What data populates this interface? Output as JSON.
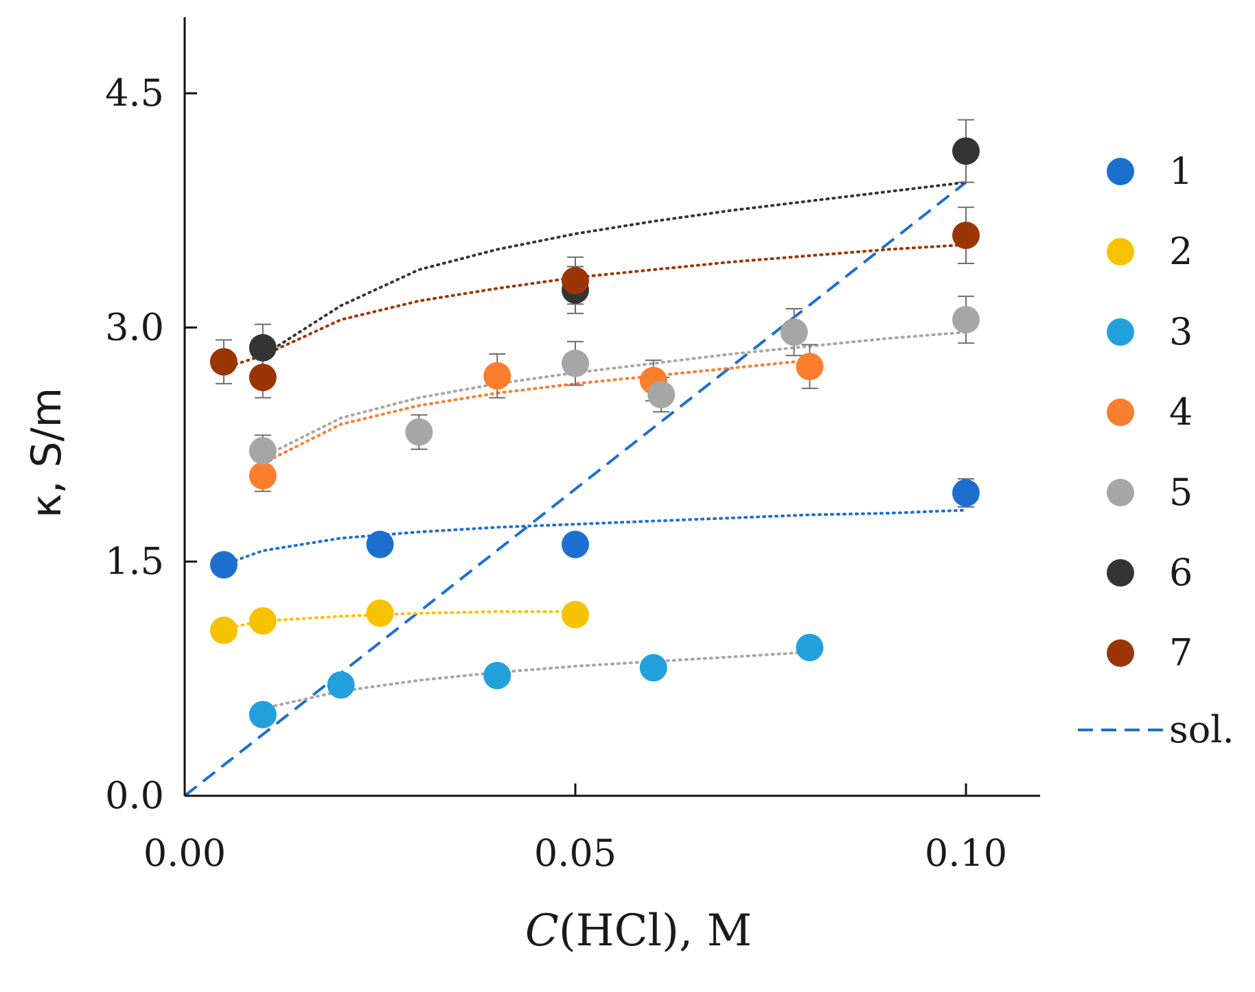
{
  "chart_data": {
    "type": "scatter",
    "xlabel": {
      "italic": "C",
      "rest": "(HCl), M"
    },
    "ylabel": "κ, S/m",
    "xlim": [
      0,
      0.11
    ],
    "ylim": [
      0,
      5.0
    ],
    "xticks": [
      0.0,
      0.05,
      0.1
    ],
    "xtick_labels": [
      "0.00",
      "0.05",
      "0.10"
    ],
    "yticks": [
      0.0,
      1.5,
      3.0,
      4.5
    ],
    "ytick_labels": [
      "0.0",
      "1.5",
      "3.0",
      "4.5"
    ],
    "grid": false,
    "legend_position": "right",
    "series": [
      {
        "name": "1",
        "color": "#1c6fcf",
        "fit_color": "#1c6fcf",
        "points": [
          [
            0.005,
            1.48
          ],
          [
            0.025,
            1.61
          ],
          [
            0.05,
            1.61
          ],
          [
            0.1,
            1.94
          ]
        ],
        "errors": [
          0.06,
          0,
          0,
          0.09
        ],
        "fit": [
          [
            0.005,
            1.48
          ],
          [
            0.01,
            1.57
          ],
          [
            0.02,
            1.65
          ],
          [
            0.03,
            1.69
          ],
          [
            0.04,
            1.72
          ],
          [
            0.05,
            1.74
          ],
          [
            0.06,
            1.76
          ],
          [
            0.07,
            1.78
          ],
          [
            0.08,
            1.8
          ],
          [
            0.09,
            1.81
          ],
          [
            0.1,
            1.83
          ]
        ]
      },
      {
        "name": "2",
        "color": "#f7c200",
        "fit_color": "#f7c200",
        "points": [
          [
            0.005,
            1.06
          ],
          [
            0.01,
            1.12
          ],
          [
            0.025,
            1.17
          ],
          [
            0.05,
            1.16
          ]
        ],
        "errors": [
          0,
          0,
          0,
          0
        ],
        "fit": [
          [
            0.005,
            1.07
          ],
          [
            0.01,
            1.12
          ],
          [
            0.02,
            1.15
          ],
          [
            0.03,
            1.17
          ],
          [
            0.04,
            1.18
          ],
          [
            0.05,
            1.18
          ]
        ]
      },
      {
        "name": "3",
        "color": "#22a0db",
        "fit_color": "#a6a6a6",
        "points": [
          [
            0.01,
            0.52
          ],
          [
            0.02,
            0.71
          ],
          [
            0.04,
            0.77
          ],
          [
            0.06,
            0.82
          ],
          [
            0.08,
            0.95
          ]
        ],
        "errors": [
          0,
          0,
          0,
          0,
          0
        ],
        "fit": [
          [
            0.01,
            0.56
          ],
          [
            0.02,
            0.67
          ],
          [
            0.03,
            0.74
          ],
          [
            0.04,
            0.79
          ],
          [
            0.05,
            0.83
          ],
          [
            0.06,
            0.86
          ],
          [
            0.07,
            0.89
          ],
          [
            0.08,
            0.92
          ]
        ]
      },
      {
        "name": "4",
        "color": "#fb7d2e",
        "fit_color": "#fb7d2e",
        "points": [
          [
            0.01,
            2.05
          ],
          [
            0.04,
            2.69
          ],
          [
            0.06,
            2.66
          ],
          [
            0.08,
            2.75
          ]
        ],
        "errors": [
          0.1,
          0.14,
          0.13,
          0.14
        ],
        "fit": [
          [
            0.01,
            2.13
          ],
          [
            0.02,
            2.38
          ],
          [
            0.03,
            2.5
          ],
          [
            0.04,
            2.58
          ],
          [
            0.05,
            2.64
          ],
          [
            0.06,
            2.69
          ],
          [
            0.07,
            2.74
          ],
          [
            0.08,
            2.79
          ]
        ]
      },
      {
        "name": "5",
        "color": "#a6a6a6",
        "fit_color": "#a6a6a6",
        "points": [
          [
            0.01,
            2.21
          ],
          [
            0.03,
            2.33
          ],
          [
            0.05,
            2.77
          ],
          [
            0.061,
            2.57
          ],
          [
            0.078,
            2.97
          ],
          [
            0.1,
            3.05
          ]
        ],
        "errors": [
          0.1,
          0.11,
          0.14,
          0.11,
          0.15,
          0.15
        ],
        "fit": [
          [
            0.01,
            2.17
          ],
          [
            0.02,
            2.42
          ],
          [
            0.03,
            2.55
          ],
          [
            0.04,
            2.64
          ],
          [
            0.05,
            2.71
          ],
          [
            0.06,
            2.77
          ],
          [
            0.07,
            2.83
          ],
          [
            0.08,
            2.88
          ],
          [
            0.09,
            2.93
          ],
          [
            0.1,
            2.97
          ]
        ]
      },
      {
        "name": "6",
        "color": "#343434",
        "fit_color": "#343434",
        "points": [
          [
            0.01,
            2.87
          ],
          [
            0.05,
            3.24
          ],
          [
            0.1,
            4.13
          ]
        ],
        "errors": [
          0.15,
          0.15,
          0.2
        ],
        "fit": [
          [
            0.01,
            2.82
          ],
          [
            0.015,
            2.98
          ],
          [
            0.02,
            3.14
          ],
          [
            0.03,
            3.37
          ],
          [
            0.04,
            3.5
          ],
          [
            0.05,
            3.6
          ],
          [
            0.06,
            3.68
          ],
          [
            0.07,
            3.75
          ],
          [
            0.08,
            3.81
          ],
          [
            0.09,
            3.87
          ],
          [
            0.1,
            3.93
          ]
        ]
      },
      {
        "name": "7",
        "color": "#9b3503",
        "fit_color": "#9b3503",
        "points": [
          [
            0.005,
            2.78
          ],
          [
            0.01,
            2.68
          ],
          [
            0.05,
            3.3
          ],
          [
            0.1,
            3.59
          ]
        ],
        "errors": [
          0.14,
          0.13,
          0.15,
          0.18
        ],
        "fit": [
          [
            0.005,
            2.74
          ],
          [
            0.01,
            2.82
          ],
          [
            0.02,
            3.05
          ],
          [
            0.03,
            3.17
          ],
          [
            0.04,
            3.25
          ],
          [
            0.05,
            3.32
          ],
          [
            0.06,
            3.37
          ],
          [
            0.07,
            3.42
          ],
          [
            0.08,
            3.46
          ],
          [
            0.09,
            3.5
          ],
          [
            0.1,
            3.53
          ]
        ]
      }
    ],
    "reference_line": {
      "name": "sol.",
      "color": "#1c6fcf",
      "style": "dashed",
      "points": [
        [
          0.0,
          0.0
        ],
        [
          0.1,
          3.93
        ]
      ]
    }
  }
}
